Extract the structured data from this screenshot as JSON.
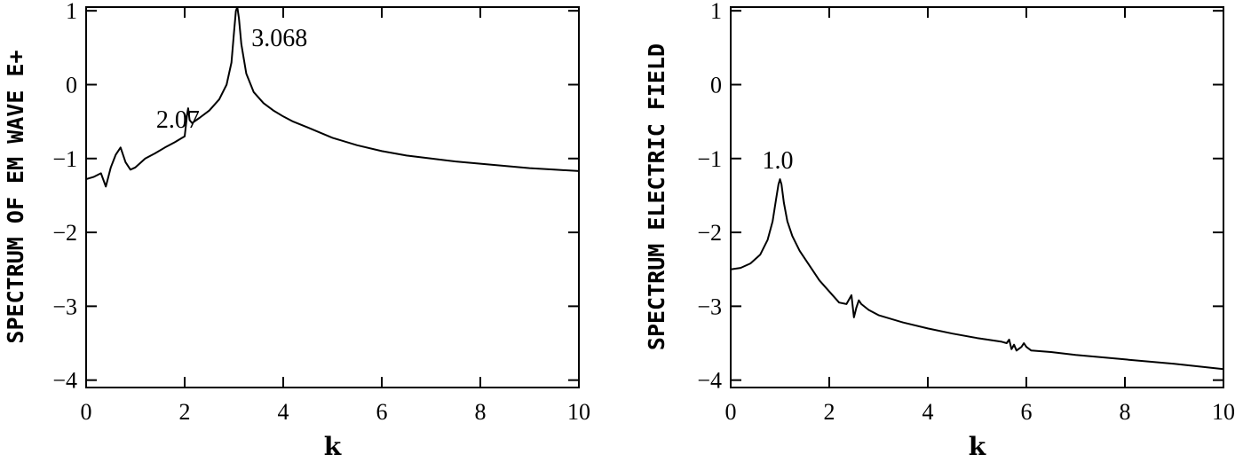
{
  "chart_data": [
    {
      "type": "line",
      "xlabel": "k",
      "ylabel": "SPECTRUM OF EM WAVE E+",
      "xlim": [
        0,
        10
      ],
      "ylim": [
        -4.1,
        1.05
      ],
      "xticks": [
        0,
        2,
        4,
        6,
        8,
        10
      ],
      "yticks": [
        1,
        0,
        -1,
        -2,
        -3,
        -4
      ],
      "xtick_labels": [
        "0",
        "2",
        "4",
        "6",
        "8",
        "10"
      ],
      "ytick_labels": [
        "1",
        "0",
        "−1",
        "−2",
        "−3",
        "−4"
      ],
      "grid": false,
      "series": [
        {
          "x": [
            0.0,
            0.15,
            0.3,
            0.4,
            0.45,
            0.5,
            0.6,
            0.7,
            0.8,
            0.9,
            1.0,
            1.2,
            1.4,
            1.6,
            1.8,
            1.95,
            2.0,
            2.05,
            2.07,
            2.1,
            2.15,
            2.3,
            2.5,
            2.7,
            2.85,
            2.95,
            3.0,
            3.04,
            3.068,
            3.1,
            3.15,
            3.25,
            3.4,
            3.6,
            3.8,
            4.0,
            4.2,
            4.5,
            5.0,
            5.5,
            6.0,
            6.5,
            7.0,
            7.5,
            8.0,
            8.5,
            9.0,
            9.5,
            10.0
          ],
          "y": [
            -1.28,
            -1.25,
            -1.2,
            -1.38,
            -1.25,
            -1.12,
            -0.95,
            -0.85,
            -1.05,
            -1.15,
            -1.12,
            -1.0,
            -0.93,
            -0.85,
            -0.78,
            -0.72,
            -0.7,
            -0.4,
            -0.32,
            -0.48,
            -0.52,
            -0.45,
            -0.35,
            -0.2,
            0.0,
            0.3,
            0.7,
            1.0,
            1.05,
            0.9,
            0.55,
            0.15,
            -0.1,
            -0.25,
            -0.35,
            -0.43,
            -0.5,
            -0.58,
            -0.72,
            -0.82,
            -0.9,
            -0.96,
            -1.0,
            -1.04,
            -1.07,
            -1.1,
            -1.13,
            -1.15,
            -1.17
          ]
        }
      ],
      "annotations": [
        {
          "text": "2.07",
          "x": 2.07,
          "y": -0.32
        },
        {
          "text": "3.068",
          "x": 3.068,
          "y": 1.05
        }
      ]
    },
    {
      "type": "line",
      "xlabel": "k",
      "ylabel": "SPECTRUM ELECTRIC FIELD",
      "xlim": [
        0,
        10
      ],
      "ylim": [
        -4.1,
        1.05
      ],
      "xticks": [
        0,
        2,
        4,
        6,
        8,
        10
      ],
      "yticks": [
        1,
        0,
        -1,
        -2,
        -3,
        -4
      ],
      "xtick_labels": [
        "0",
        "2",
        "4",
        "6",
        "8",
        "10"
      ],
      "ytick_labels": [
        "1",
        "0",
        "−1",
        "−2",
        "−3",
        "−4"
      ],
      "grid": false,
      "series": [
        {
          "x": [
            0.0,
            0.2,
            0.4,
            0.6,
            0.75,
            0.85,
            0.92,
            0.97,
            1.0,
            1.03,
            1.08,
            1.15,
            1.25,
            1.4,
            1.6,
            1.8,
            2.0,
            2.2,
            2.35,
            2.45,
            2.5,
            2.55,
            2.6,
            2.65,
            2.8,
            3.0,
            3.5,
            4.0,
            4.5,
            5.0,
            5.5,
            5.6,
            5.65,
            5.7,
            5.75,
            5.8,
            5.9,
            5.95,
            6.0,
            6.1,
            6.5,
            7.0,
            8.0,
            9.0,
            10.0
          ],
          "y": [
            -2.5,
            -2.48,
            -2.42,
            -2.3,
            -2.1,
            -1.85,
            -1.55,
            -1.35,
            -1.28,
            -1.35,
            -1.6,
            -1.85,
            -2.05,
            -2.25,
            -2.45,
            -2.65,
            -2.8,
            -2.95,
            -2.97,
            -2.85,
            -3.15,
            -3.02,
            -2.92,
            -2.97,
            -3.05,
            -3.12,
            -3.22,
            -3.3,
            -3.37,
            -3.43,
            -3.48,
            -3.5,
            -3.45,
            -3.58,
            -3.52,
            -3.6,
            -3.55,
            -3.5,
            -3.55,
            -3.6,
            -3.62,
            -3.66,
            -3.72,
            -3.78,
            -3.85
          ]
        }
      ],
      "annotations": [
        {
          "text": "1.0",
          "x": 1.0,
          "y": -1.28
        }
      ]
    }
  ]
}
